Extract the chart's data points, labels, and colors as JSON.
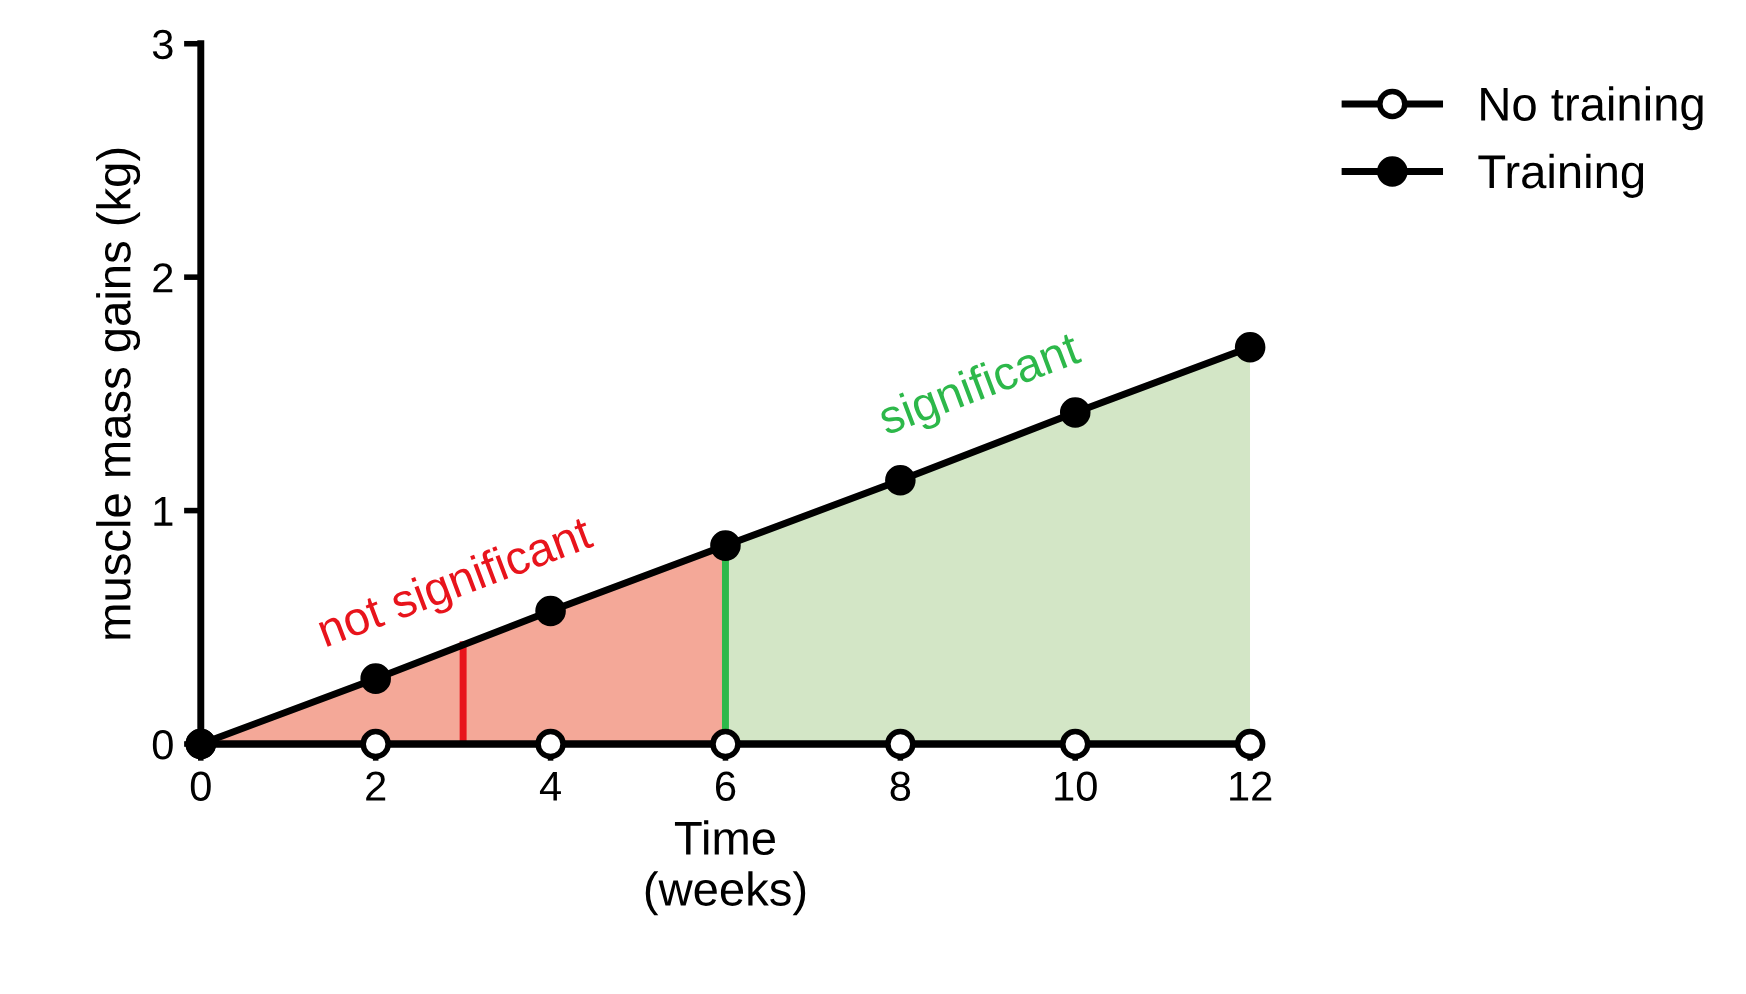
{
  "chart_data": {
    "type": "line",
    "xlabel": "Time\n(weeks)",
    "ylabel": "muscle mass gains (kg)",
    "x": [
      0,
      2,
      4,
      6,
      8,
      10,
      12
    ],
    "series": [
      {
        "type": "area",
        "marker": "none",
        "color": "#f4a898",
        "x": [
          0,
          2,
          4,
          6
        ],
        "values": [
          0,
          0.28,
          0.57,
          0.85
        ]
      },
      {
        "type": "area",
        "marker": "none",
        "color": "#d3e6c6",
        "x": [
          6,
          8,
          10,
          12
        ],
        "values": [
          0.85,
          1.13,
          1.42,
          1.7
        ]
      },
      {
        "name": "No training",
        "color": "#000000",
        "values": [
          0,
          0,
          0,
          0,
          0,
          0,
          0
        ]
      },
      {
        "name": "Training",
        "color": "#000000",
        "values": [
          0,
          0.28,
          0.57,
          0.85,
          1.13,
          1.42,
          1.7
        ]
      }
    ],
    "annotations": [
      {
        "text": "not significant",
        "x": 3,
        "y": 0.425
      },
      {
        "text": "significant",
        "x": 9,
        "y": 1.275
      }
    ],
    "ref_lines": [
      {
        "axis": "x",
        "value": 3,
        "color": "#e8141c"
      },
      {
        "axis": "x",
        "value": 6,
        "color": "#2db84a"
      }
    ],
    "xlim": [
      0,
      12
    ],
    "ylim": [
      0,
      3
    ],
    "xticks": [
      0,
      2,
      4,
      6,
      8,
      10,
      12
    ],
    "yticks": [
      0,
      1,
      2,
      3
    ],
    "grid": false,
    "legend": "top right",
    "marker": "circle",
    "line_style": "solid"
  }
}
